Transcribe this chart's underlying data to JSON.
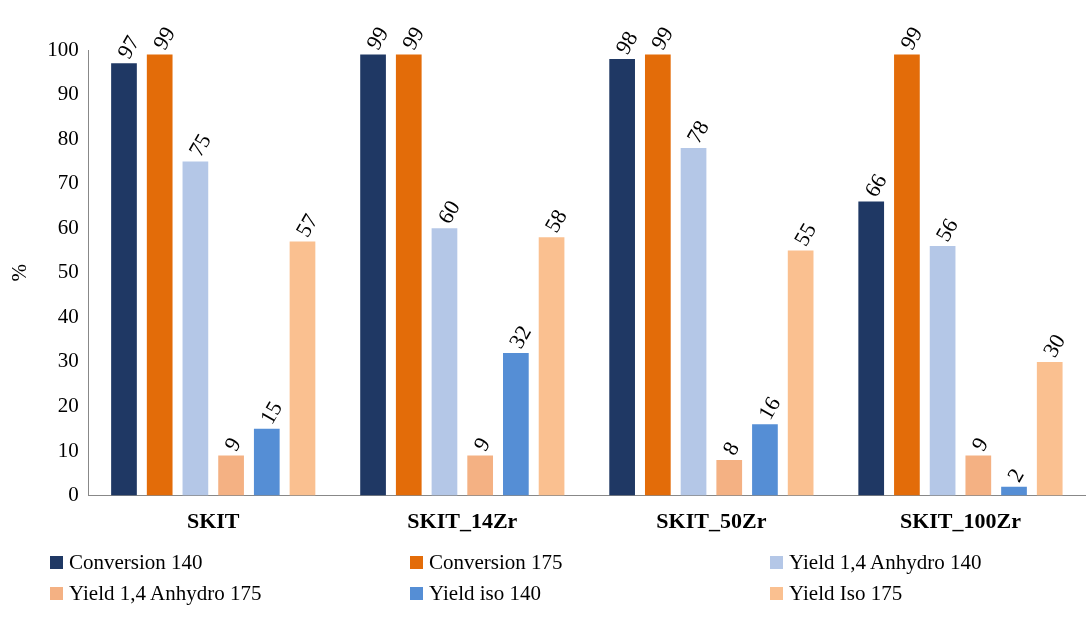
{
  "chart_data": {
    "type": "bar",
    "ylabel": "%",
    "categories": [
      "SKIT",
      "SKIT_14Zr",
      "SKIT_50Zr",
      "SKIT_100Zr"
    ],
    "series": [
      {
        "name": "Conversion 140",
        "color": "#1f3864",
        "values": [
          97,
          99,
          98,
          66
        ]
      },
      {
        "name": "Conversion 175",
        "color": "#e36c09",
        "values": [
          99,
          99,
          99,
          99
        ]
      },
      {
        "name": "Yield 1,4 Anhydro 140",
        "color": "#b4c7e7",
        "values": [
          75,
          60,
          78,
          56
        ]
      },
      {
        "name": "Yield 1,4 Anhydro 175",
        "color": "#f4b183",
        "values": [
          9,
          9,
          8,
          9
        ]
      },
      {
        "name": "Yield iso 140",
        "color": "#558ed5",
        "values": [
          15,
          32,
          16,
          2
        ]
      },
      {
        "name": "Yield Iso 175",
        "color": "#fac090",
        "values": [
          57,
          58,
          55,
          30
        ]
      }
    ],
    "ylim": [
      0,
      100
    ],
    "yticks": [
      0,
      10,
      20,
      30,
      40,
      50,
      60,
      70,
      80,
      90,
      100
    ],
    "grid": false,
    "legend": "bottom",
    "data_labels": true
  }
}
